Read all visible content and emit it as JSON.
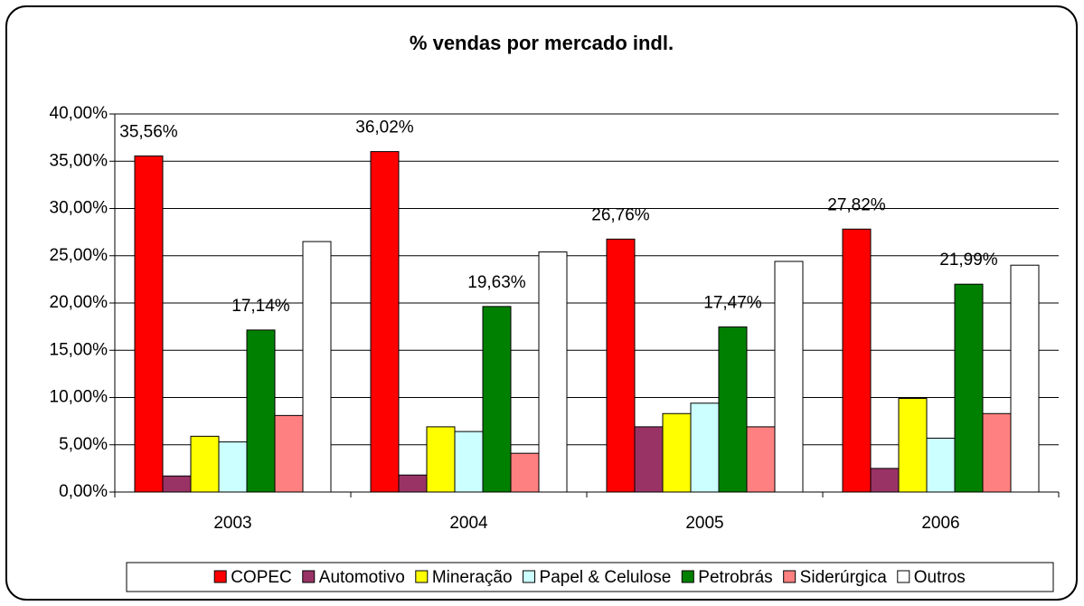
{
  "chart_data": {
    "type": "bar",
    "title": "% vendas por mercado indl.",
    "categories": [
      "2003",
      "2004",
      "2005",
      "2006"
    ],
    "series": [
      {
        "name": "COPEC",
        "color": "#ff0000",
        "values": [
          35.56,
          36.02,
          26.76,
          27.82
        ],
        "value_labels": [
          "35,56%",
          "36,02%",
          "26,76%",
          "27,82%"
        ]
      },
      {
        "name": "Automotivo",
        "color": "#993366",
        "values": [
          1.7,
          1.8,
          6.9,
          2.5
        ]
      },
      {
        "name": "Mineração",
        "color": "#ffff00",
        "values": [
          5.9,
          6.9,
          8.3,
          9.9
        ]
      },
      {
        "name": "Papel & Celulose",
        "color": "#ccffff",
        "values": [
          5.3,
          6.4,
          9.4,
          5.7
        ]
      },
      {
        "name": "Petrobrás",
        "color": "#008000",
        "values": [
          17.14,
          19.63,
          17.47,
          21.99
        ],
        "value_labels": [
          "17,14%",
          "19,63%",
          "17,47%",
          "21,99%"
        ]
      },
      {
        "name": "Siderúrgica",
        "color": "#ff8080",
        "values": [
          8.1,
          4.1,
          6.9,
          8.3
        ]
      },
      {
        "name": "Outros",
        "color": "#ffffff",
        "values": [
          26.5,
          25.4,
          24.4,
          24.0
        ]
      }
    ],
    "ylim": [
      0,
      40
    ],
    "yticks": [
      {
        "value": 0,
        "label": "0,00%"
      },
      {
        "value": 5,
        "label": "5,00%"
      },
      {
        "value": 10,
        "label": "10,00%"
      },
      {
        "value": 15,
        "label": "15,00%"
      },
      {
        "value": 20,
        "label": "20,00%"
      },
      {
        "value": 25,
        "label": "25,00%"
      },
      {
        "value": 30,
        "label": "30,00%"
      },
      {
        "value": 35,
        "label": "35,00%"
      },
      {
        "value": 40,
        "label": "40,00%"
      }
    ],
    "grid": true,
    "legend": "bottom"
  }
}
